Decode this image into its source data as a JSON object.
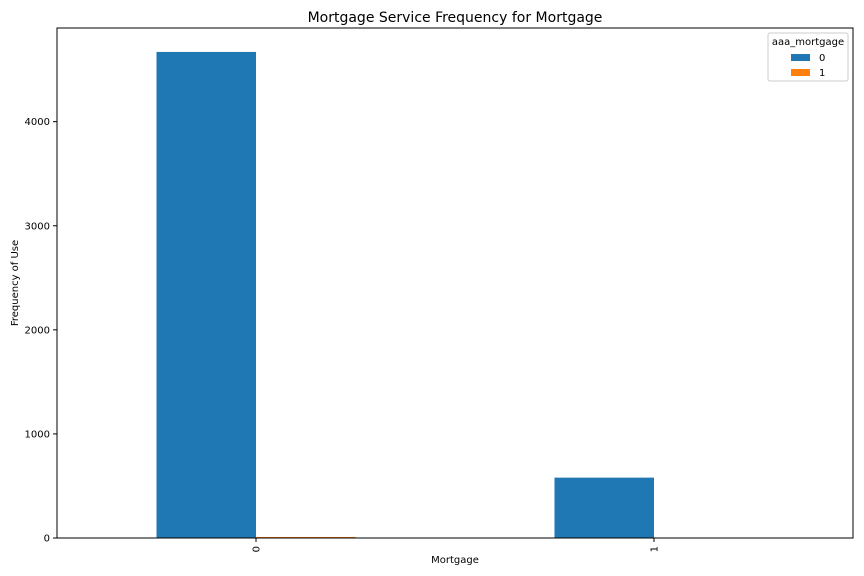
{
  "chart_data": {
    "type": "bar",
    "title": "Mortgage Service Frequency for Mortgage",
    "xlabel": "Mortgage",
    "ylabel": "Frequency of Use",
    "categories": [
      "0",
      "1"
    ],
    "series": [
      {
        "name": "0",
        "values": [
          4670,
          580
        ],
        "color": "#1f77b4"
      },
      {
        "name": "1",
        "values": [
          10,
          0
        ],
        "color": "#ff7f0e"
      }
    ],
    "ylim": [
      0,
      4900
    ],
    "yticks": [
      0,
      1000,
      2000,
      3000,
      4000
    ],
    "grid": false,
    "legend": {
      "title": "aaa_mortgage",
      "placement": "top-right"
    }
  }
}
